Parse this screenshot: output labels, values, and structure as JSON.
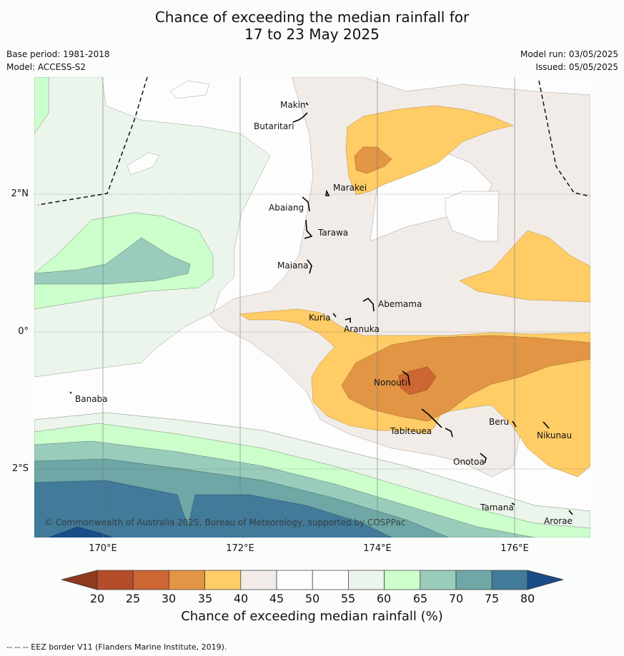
{
  "title_line1": "Chance of exceeding the median rainfall for",
  "title_line2": "17 to 23 May 2025",
  "base_period": "Base period: 1981-2018",
  "model": "Model: ACCESS-S2",
  "model_run": "Model run: 03/05/2025",
  "issued": "Issued: 05/05/2025",
  "map": {
    "lat_labels": [
      "2°N",
      "0°",
      "2°S"
    ],
    "lon_labels": [
      "170°E",
      "172°E",
      "174°E",
      "176°E"
    ],
    "places": [
      "Makin",
      "Butaritari",
      "Marakei",
      "Abaiang",
      "Tarawa",
      "Maiana",
      "Abemama",
      "Kuria",
      "Aranuka",
      "Nonouti",
      "Banaba",
      "Beru",
      "Tabiteuea",
      "Nikunau",
      "Onotoa",
      "Tamana",
      "Arorae"
    ],
    "copyright": "© Commonwealth of Australia 2025, Bureau of Meteorology, supported by COSPPac"
  },
  "colorbar": {
    "ticks": [
      "20",
      "25",
      "30",
      "35",
      "40",
      "45",
      "50",
      "55",
      "60",
      "65",
      "70",
      "75",
      "80"
    ],
    "label": "Chance of exceeding median rainfall (%)",
    "colors": {
      "below_20": "#8e3a1e",
      "20_25": "#b54d2a",
      "25_30": "#cc6633",
      "30_35": "#e19545",
      "35_40": "#ffcc66",
      "40_45": "#f2ece8",
      "45_50": "#fcfdfc",
      "50_55": "#fcfdfc",
      "55_60": "#ebf5eb",
      "60_65": "#ccffcc",
      "65_70": "#99ccbb",
      "70_75": "#6fa6a6",
      "75_80": "#427a99",
      "above_80": "#1a4c88"
    }
  },
  "footer": "--  --  -- EEZ border V11 (Flanders Marine Institute, 2019)."
}
